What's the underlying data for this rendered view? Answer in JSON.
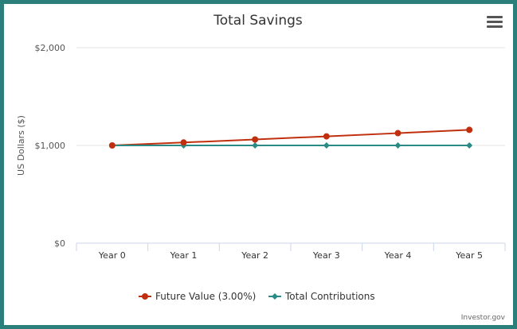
{
  "chart_data": {
    "type": "line",
    "title": "Total Savings",
    "ylabel": "US Dollars ($)",
    "xlabel": "",
    "categories": [
      "Year 0",
      "Year 1",
      "Year 2",
      "Year 3",
      "Year 4",
      "Year 5"
    ],
    "ylim": [
      0,
      2000
    ],
    "yticks": [
      {
        "value": 0,
        "label": "$0"
      },
      {
        "value": 1000,
        "label": "$1,000"
      },
      {
        "value": 2000,
        "label": "$2,000"
      }
    ],
    "grid": true,
    "legend_position": "bottom",
    "series": [
      {
        "name": "Future Value (3.00%)",
        "color": "#c0300f",
        "marker": "circle",
        "values": [
          1000,
          1030,
          1060.9,
          1092.73,
          1125.51,
          1159.27
        ]
      },
      {
        "name": "Total Contributions",
        "color": "#2a8a86",
        "marker": "diamond",
        "values": [
          1000,
          1000,
          1000,
          1000,
          1000,
          1000
        ]
      }
    ],
    "credit": "Investor.gov"
  },
  "toolbar": {
    "menu_icon": "hamburger-menu-icon"
  }
}
